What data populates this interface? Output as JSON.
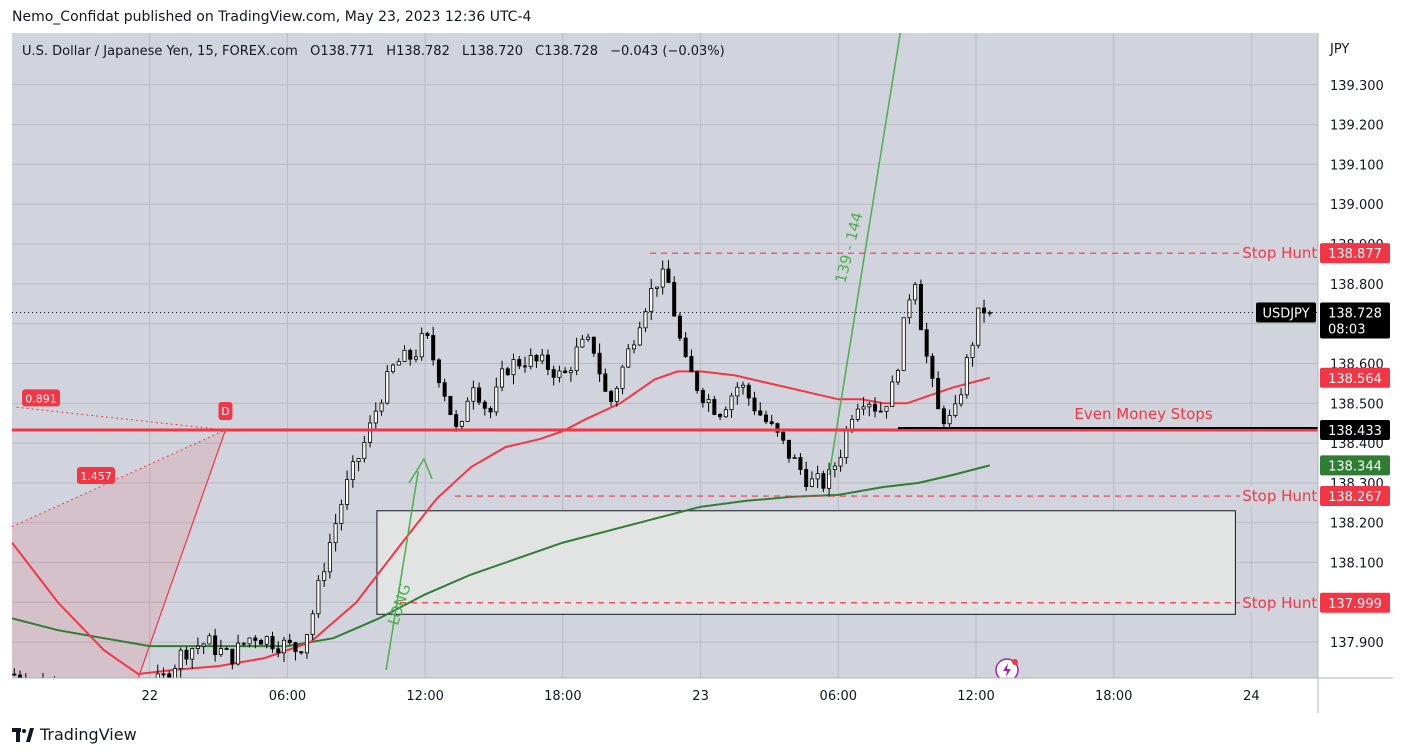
{
  "header": {
    "published": "Nemo_Confidat published on TradingView.com, May 23, 2023 12:36 UTC-4"
  },
  "legend": {
    "symbol": "U.S. Dollar / Japanese Yen, 15, FOREX.com",
    "open_label": "O",
    "open": "138.771",
    "high_label": "H",
    "high": "138.782",
    "low_label": "L",
    "low": "138.720",
    "close_label": "C",
    "close": "138.728",
    "change": "−0.043 (−0.03%)"
  },
  "footer": {
    "brand": "TradingView"
  },
  "colors": {
    "background": "#d1d4dc",
    "up_candle": "#ffffff",
    "down_candle": "#000000",
    "ma_fast": "#f23645",
    "ma_slow": "#2e7d32",
    "annotation_red": "#f23645",
    "annotation_green": "#4caf50",
    "price_tag_dark": "#000000"
  },
  "chart_data": {
    "type": "candlestick",
    "currency": "JPY",
    "interval": "15",
    "ylim": [
      137.81,
      139.43
    ],
    "y_ticks": [
      137.9,
      138.0,
      138.1,
      138.2,
      138.3,
      138.4,
      138.5,
      138.6,
      138.7,
      138.8,
      138.9,
      139.0,
      139.1,
      139.2,
      139.3
    ],
    "y_tick_labels": [
      "137.900",
      "138.000",
      "138.100",
      "138.200",
      "138.300",
      "138.400",
      "138.500",
      "138.600",
      "138.700",
      "138.800",
      "138.900",
      "139.000",
      "139.100",
      "139.200",
      "139.300"
    ],
    "x_ticks": [
      {
        "label": "22",
        "hours": 24
      },
      {
        "label": "06:00",
        "hours": 30
      },
      {
        "label": "12:00",
        "hours": 36
      },
      {
        "label": "18:00",
        "hours": 42
      },
      {
        "label": "23",
        "hours": 48
      },
      {
        "label": "06:00",
        "hours": 54
      },
      {
        "label": "12:00",
        "hours": 60
      },
      {
        "label": "18:00",
        "hours": 66
      },
      {
        "label": "24",
        "hours": 72
      }
    ],
    "x_range_hours": [
      18.0,
      74.9
    ],
    "last_bar_hours": 60.6,
    "candle_anchors": [
      [
        18.0,
        137.82
      ],
      [
        19.0,
        137.8
      ],
      [
        20.0,
        137.78
      ],
      [
        21.0,
        137.76
      ],
      [
        22.0,
        137.75
      ],
      [
        23.0,
        137.77
      ],
      [
        24.5,
        137.8
      ],
      [
        25.5,
        137.88
      ],
      [
        26.5,
        137.9
      ],
      [
        27.5,
        137.86
      ],
      [
        28.5,
        137.92
      ],
      [
        29.5,
        137.9
      ],
      [
        30.5,
        137.88
      ],
      [
        31.0,
        137.95
      ],
      [
        31.7,
        138.12
      ],
      [
        32.5,
        138.28
      ],
      [
        33.5,
        138.42
      ],
      [
        34.0,
        138.51
      ],
      [
        34.7,
        138.6
      ],
      [
        35.5,
        138.62
      ],
      [
        36.0,
        138.67
      ],
      [
        36.8,
        138.54
      ],
      [
        37.5,
        138.4
      ],
      [
        38.0,
        138.57
      ],
      [
        38.8,
        138.47
      ],
      [
        39.5,
        138.59
      ],
      [
        40.3,
        138.61
      ],
      [
        41.0,
        138.6
      ],
      [
        41.5,
        138.59
      ],
      [
        42.0,
        138.56
      ],
      [
        42.7,
        138.64
      ],
      [
        43.3,
        138.65
      ],
      [
        44.0,
        138.49
      ],
      [
        44.8,
        138.62
      ],
      [
        45.5,
        138.74
      ],
      [
        46.2,
        138.82
      ],
      [
        46.6,
        138.8
      ],
      [
        47.3,
        138.6
      ],
      [
        48.0,
        138.53
      ],
      [
        48.8,
        138.48
      ],
      [
        49.7,
        138.55
      ],
      [
        50.5,
        138.48
      ],
      [
        51.3,
        138.42
      ],
      [
        52.0,
        138.36
      ],
      [
        52.8,
        138.3
      ],
      [
        53.5,
        138.3
      ],
      [
        54.1,
        138.38
      ],
      [
        54.7,
        138.5
      ],
      [
        55.2,
        138.52
      ],
      [
        55.8,
        138.48
      ],
      [
        56.4,
        138.54
      ],
      [
        57.0,
        138.74
      ],
      [
        57.3,
        138.84
      ],
      [
        57.7,
        138.66
      ],
      [
        58.3,
        138.48
      ],
      [
        59.0,
        138.45
      ],
      [
        59.6,
        138.6
      ],
      [
        60.2,
        138.74
      ],
      [
        60.6,
        138.73
      ]
    ],
    "ma_fast": {
      "name": "",
      "points": [
        [
          18.0,
          138.15
        ],
        [
          20.0,
          138.0
        ],
        [
          22.0,
          137.88
        ],
        [
          23.5,
          137.82
        ],
        [
          25.0,
          137.83
        ],
        [
          27.0,
          137.84
        ],
        [
          29.0,
          137.86
        ],
        [
          31.0,
          137.9
        ],
        [
          33.0,
          138.0
        ],
        [
          35.0,
          138.15
        ],
        [
          36.5,
          138.26
        ],
        [
          38.0,
          138.34
        ],
        [
          39.5,
          138.39
        ],
        [
          41.0,
          138.41
        ],
        [
          42.0,
          138.43
        ],
        [
          43.0,
          138.46
        ],
        [
          44.5,
          138.5
        ],
        [
          46.0,
          138.56
        ],
        [
          47.0,
          138.58
        ],
        [
          48.0,
          138.58
        ],
        [
          49.5,
          138.57
        ],
        [
          51.0,
          138.55
        ],
        [
          52.5,
          138.53
        ],
        [
          54.0,
          138.51
        ],
        [
          55.0,
          138.51
        ],
        [
          56.0,
          138.5
        ],
        [
          57.0,
          138.5
        ],
        [
          58.0,
          138.52
        ],
        [
          59.0,
          138.54
        ],
        [
          60.6,
          138.564
        ]
      ]
    },
    "ma_slow": {
      "name": "",
      "points": [
        [
          18.0,
          137.96
        ],
        [
          20.0,
          137.93
        ],
        [
          22.0,
          137.91
        ],
        [
          24.0,
          137.89
        ],
        [
          26.0,
          137.89
        ],
        [
          28.0,
          137.89
        ],
        [
          30.0,
          137.89
        ],
        [
          32.0,
          137.91
        ],
        [
          34.0,
          137.96
        ],
        [
          36.0,
          138.02
        ],
        [
          38.0,
          138.07
        ],
        [
          40.0,
          138.11
        ],
        [
          42.0,
          138.15
        ],
        [
          44.0,
          138.18
        ],
        [
          46.0,
          138.21
        ],
        [
          48.0,
          138.24
        ],
        [
          50.0,
          138.255
        ],
        [
          52.0,
          138.265
        ],
        [
          54.0,
          138.27
        ],
        [
          56.0,
          138.29
        ],
        [
          57.5,
          138.3
        ],
        [
          59.0,
          138.32
        ],
        [
          60.6,
          138.344
        ]
      ]
    },
    "current_price": 138.728,
    "countdown": "08:03",
    "symbol_tag": "USDJPY",
    "price_tags": [
      {
        "label": "138.877",
        "value": 138.877,
        "color": "#f23645"
      },
      {
        "label": "138.564",
        "value": 138.564,
        "color": "#f23645"
      },
      {
        "label": "138.433",
        "value": 138.433,
        "color": "#000000"
      },
      {
        "label": "138.344",
        "value": 138.344,
        "color": "#2e7d32"
      },
      {
        "label": "138.267",
        "value": 138.267,
        "color": "#f23645"
      },
      {
        "label": "137.999",
        "value": 137.999,
        "color": "#f23645"
      }
    ],
    "levels": [
      {
        "label": "Stop Hunt",
        "value": 138.877,
        "from_hours": 45.8,
        "style": "dashed"
      },
      {
        "label": "Stop Hunt",
        "value": 138.267,
        "from_hours": 37.3,
        "style": "dashed"
      },
      {
        "label": "Stop Hunt",
        "value": 137.999,
        "from_hours": 34.9,
        "style": "dashed"
      },
      {
        "label": "Even Money Stops",
        "value": 138.433,
        "from_hours": 18.0,
        "style": "solid"
      }
    ],
    "annotations": {
      "long_label": "LONG",
      "target_label": "139 - 144",
      "fib_upper": "0.891",
      "fib_lower": "1.457",
      "pattern_point": "D",
      "box": {
        "from_hours": 33.9,
        "to_hours": 71.3,
        "top": 138.23,
        "bottom": 137.97
      }
    }
  }
}
